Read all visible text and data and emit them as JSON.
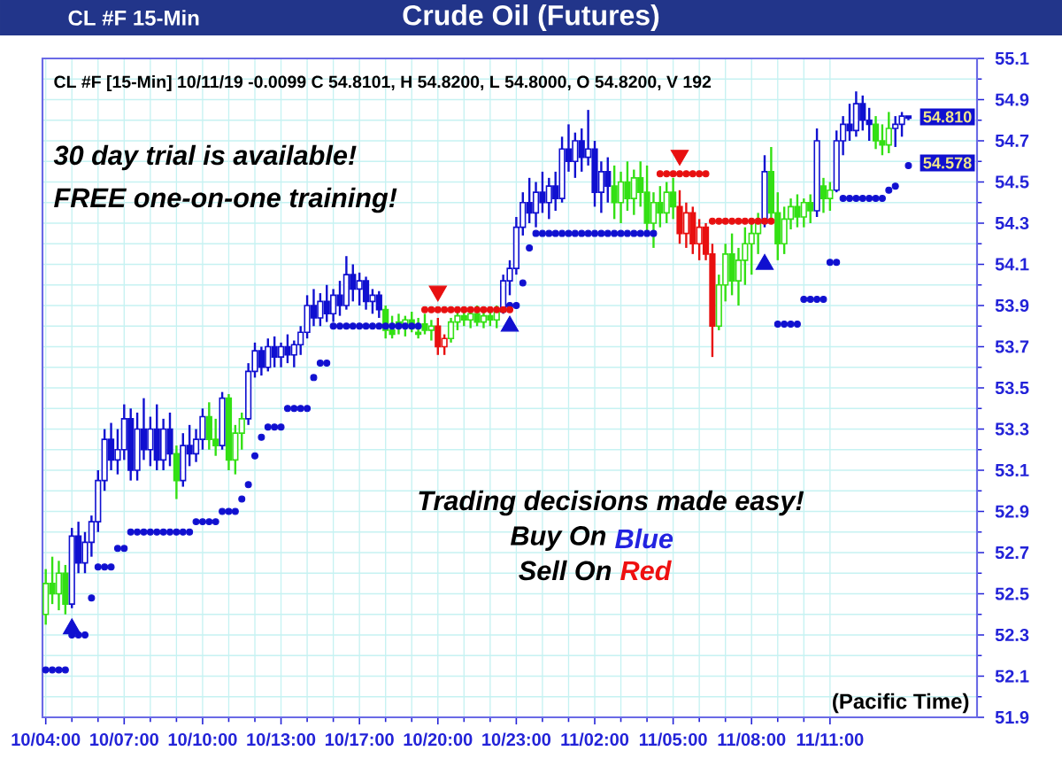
{
  "chart_data": {
    "type": "candlestick",
    "title": "Crude Oil (Futures)",
    "subtitle": "CL #F [15-Min] 10/11/19  -0.0099 C 54.8101, H 54.8200, L 54.8000, O 54.8200, V 192",
    "categories": [
      "10/04:00",
      null,
      null,
      null,
      null,
      null,
      null,
      null,
      null,
      null,
      null,
      null,
      "10/07:00",
      null,
      null,
      null,
      null,
      null,
      null,
      null,
      null,
      null,
      null,
      null,
      "10/10:00",
      null,
      null,
      null,
      null,
      null,
      null,
      null,
      null,
      null,
      null,
      null,
      "10/13:00",
      null,
      null,
      null,
      null,
      null,
      null,
      null,
      null,
      null,
      null,
      null,
      "10/17:00",
      null,
      null,
      null,
      null,
      null,
      null,
      null,
      null,
      null,
      null,
      null,
      "10/20:00",
      null,
      null,
      null,
      null,
      null,
      null,
      null,
      null,
      null,
      null,
      null,
      "10/23:00",
      null,
      null,
      null,
      null,
      null,
      null,
      null,
      null,
      null,
      null,
      null,
      "11/02:00",
      null,
      null,
      null,
      null,
      null,
      null,
      null,
      null,
      null,
      null,
      null,
      "11/05:00",
      null,
      null,
      null,
      null,
      null,
      null,
      null,
      null,
      null,
      null,
      null,
      "11/08:00",
      null,
      null,
      null,
      null,
      null,
      null,
      null,
      null,
      null,
      null,
      null,
      "11/11:00",
      null,
      null,
      null,
      null,
      null,
      null,
      null,
      null,
      null,
      null,
      null,
      null
    ],
    "ohlc": [
      [
        52.4,
        52.62,
        52.35,
        52.55
      ],
      [
        52.55,
        52.68,
        52.45,
        52.5
      ],
      [
        52.5,
        52.66,
        52.42,
        52.6
      ],
      [
        52.6,
        52.64,
        52.4,
        52.45
      ],
      [
        52.45,
        52.82,
        52.43,
        52.78
      ],
      [
        52.78,
        52.85,
        52.6,
        52.65
      ],
      [
        52.65,
        52.8,
        52.6,
        52.75
      ],
      [
        52.75,
        52.88,
        52.68,
        52.85
      ],
      [
        52.85,
        53.1,
        52.8,
        53.05
      ],
      [
        53.05,
        53.3,
        53.0,
        53.25
      ],
      [
        53.25,
        53.33,
        53.1,
        53.15
      ],
      [
        53.15,
        53.3,
        53.08,
        53.2
      ],
      [
        53.2,
        53.42,
        53.15,
        53.35
      ],
      [
        53.35,
        53.4,
        53.05,
        53.1
      ],
      [
        53.1,
        53.38,
        53.05,
        53.3
      ],
      [
        53.3,
        53.45,
        53.15,
        53.2
      ],
      [
        53.2,
        53.36,
        53.12,
        53.3
      ],
      [
        53.3,
        53.42,
        53.1,
        53.15
      ],
      [
        53.15,
        53.35,
        53.1,
        53.3
      ],
      [
        53.3,
        53.38,
        53.12,
        53.18
      ],
      [
        53.18,
        53.22,
        52.96,
        53.05
      ],
      [
        53.05,
        53.28,
        53.02,
        53.22
      ],
      [
        53.22,
        53.32,
        53.12,
        53.18
      ],
      [
        53.18,
        53.3,
        53.14,
        53.25
      ],
      [
        53.25,
        53.4,
        53.2,
        53.36
      ],
      [
        53.36,
        53.43,
        53.2,
        53.25
      ],
      [
        53.25,
        53.35,
        53.17,
        53.22
      ],
      [
        53.22,
        53.48,
        53.2,
        53.45
      ],
      [
        53.45,
        53.47,
        53.1,
        53.15
      ],
      [
        53.15,
        53.32,
        53.08,
        53.28
      ],
      [
        53.28,
        53.38,
        53.2,
        53.35
      ],
      [
        53.35,
        53.62,
        53.32,
        53.58
      ],
      [
        53.58,
        53.72,
        53.55,
        53.68
      ],
      [
        53.68,
        53.7,
        53.56,
        53.6
      ],
      [
        53.6,
        53.74,
        53.58,
        53.7
      ],
      [
        53.7,
        53.75,
        53.6,
        53.65
      ],
      [
        53.65,
        53.72,
        53.6,
        53.7
      ],
      [
        53.7,
        53.76,
        53.62,
        53.66
      ],
      [
        53.66,
        53.73,
        53.6,
        53.71
      ],
      [
        53.71,
        53.8,
        53.66,
        53.77
      ],
      [
        53.77,
        53.95,
        53.74,
        53.9
      ],
      [
        53.9,
        53.98,
        53.8,
        53.84
      ],
      [
        53.84,
        53.96,
        53.8,
        53.92
      ],
      [
        53.92,
        54.0,
        53.82,
        53.86
      ],
      [
        53.86,
        53.98,
        53.82,
        53.95
      ],
      [
        53.95,
        54.02,
        53.85,
        53.9
      ],
      [
        53.9,
        54.14,
        53.88,
        54.05
      ],
      [
        54.05,
        54.1,
        53.92,
        53.98
      ],
      [
        53.98,
        54.06,
        53.9,
        54.02
      ],
      [
        54.02,
        54.04,
        53.88,
        53.92
      ],
      [
        53.92,
        53.98,
        53.86,
        53.95
      ],
      [
        53.95,
        53.97,
        53.84,
        53.88
      ],
      [
        53.88,
        53.9,
        53.74,
        53.78
      ],
      [
        53.78,
        53.85,
        53.74,
        53.76
      ],
      [
        53.82,
        53.86,
        53.76,
        53.8
      ],
      [
        53.8,
        53.85,
        53.75,
        53.83
      ],
      [
        53.83,
        53.87,
        53.77,
        53.79
      ],
      [
        53.77,
        53.84,
        53.74,
        53.76
      ],
      [
        53.81,
        53.86,
        53.76,
        53.78
      ],
      [
        53.78,
        53.83,
        53.73,
        53.8
      ],
      [
        53.8,
        53.84,
        53.66,
        53.7
      ],
      [
        53.7,
        53.76,
        53.66,
        53.74
      ],
      [
        53.74,
        53.84,
        53.72,
        53.82
      ],
      [
        53.82,
        53.88,
        53.78,
        53.85
      ],
      [
        53.85,
        53.89,
        53.8,
        53.83
      ],
      [
        53.83,
        53.88,
        53.79,
        53.86
      ],
      [
        53.86,
        53.9,
        53.8,
        53.82
      ],
      [
        53.82,
        53.87,
        53.79,
        53.85
      ],
      [
        53.85,
        53.89,
        53.8,
        53.83
      ],
      [
        53.83,
        53.9,
        53.79,
        53.87
      ],
      [
        53.87,
        54.05,
        53.86,
        54.02
      ],
      [
        54.02,
        54.12,
        53.95,
        54.08
      ],
      [
        54.08,
        54.33,
        54.05,
        54.28
      ],
      [
        54.28,
        54.45,
        54.24,
        54.4
      ],
      [
        54.4,
        54.52,
        54.3,
        54.35
      ],
      [
        54.35,
        54.5,
        54.28,
        54.45
      ],
      [
        54.45,
        54.55,
        54.35,
        54.4
      ],
      [
        54.4,
        54.52,
        54.32,
        54.48
      ],
      [
        54.48,
        54.55,
        54.36,
        54.42
      ],
      [
        54.42,
        54.72,
        54.4,
        54.66
      ],
      [
        54.66,
        54.78,
        54.55,
        54.6
      ],
      [
        54.6,
        54.74,
        54.52,
        54.7
      ],
      [
        54.7,
        54.76,
        54.55,
        54.62
      ],
      [
        54.62,
        54.85,
        54.58,
        54.66
      ],
      [
        54.66,
        54.7,
        54.38,
        54.45
      ],
      [
        54.45,
        54.6,
        54.35,
        54.55
      ],
      [
        54.55,
        54.62,
        54.4,
        54.48
      ],
      [
        54.48,
        54.58,
        54.32,
        54.4
      ],
      [
        54.4,
        54.55,
        54.3,
        54.5
      ],
      [
        54.5,
        54.6,
        54.36,
        54.42
      ],
      [
        54.42,
        54.56,
        54.34,
        54.52
      ],
      [
        54.52,
        54.6,
        54.38,
        54.45
      ],
      [
        54.45,
        54.58,
        54.25,
        54.3
      ],
      [
        54.3,
        54.45,
        54.18,
        54.4
      ],
      [
        54.4,
        54.48,
        54.28,
        54.35
      ],
      [
        54.35,
        54.5,
        54.3,
        54.45
      ],
      [
        54.45,
        54.52,
        54.32,
        54.38
      ],
      [
        54.38,
        54.46,
        54.2,
        54.25
      ],
      [
        54.25,
        54.4,
        54.18,
        54.35
      ],
      [
        54.35,
        54.38,
        54.15,
        54.2
      ],
      [
        54.2,
        54.32,
        54.12,
        54.28
      ],
      [
        54.28,
        54.3,
        54.12,
        54.15
      ],
      [
        54.15,
        54.2,
        53.65,
        53.8
      ],
      [
        53.8,
        54.05,
        53.78,
        54.0
      ],
      [
        54.0,
        54.2,
        53.92,
        54.15
      ],
      [
        54.15,
        54.25,
        53.95,
        54.02
      ],
      [
        54.02,
        54.18,
        53.9,
        54.12
      ],
      [
        54.12,
        54.28,
        54.0,
        54.2
      ],
      [
        54.2,
        54.3,
        54.05,
        54.25
      ],
      [
        54.25,
        54.35,
        54.15,
        54.3
      ],
      [
        54.3,
        54.63,
        54.28,
        54.55
      ],
      [
        54.55,
        54.67,
        54.3,
        54.35
      ],
      [
        54.35,
        54.45,
        54.12,
        54.2
      ],
      [
        54.2,
        54.38,
        54.15,
        54.32
      ],
      [
        54.32,
        54.42,
        54.27,
        54.38
      ],
      [
        54.38,
        54.44,
        54.28,
        54.33
      ],
      [
        54.33,
        54.42,
        54.28,
        54.4
      ],
      [
        54.4,
        54.44,
        54.3,
        54.36
      ],
      [
        54.36,
        54.76,
        54.33,
        54.7
      ],
      [
        54.48,
        54.52,
        54.35,
        54.42
      ],
      [
        54.42,
        54.5,
        54.36,
        54.46
      ],
      [
        54.46,
        54.75,
        54.45,
        54.7
      ],
      [
        54.7,
        54.82,
        54.63,
        54.78
      ],
      [
        54.78,
        54.88,
        54.7,
        54.75
      ],
      [
        54.75,
        54.94,
        54.72,
        54.88
      ],
      [
        54.88,
        54.92,
        54.75,
        54.8
      ],
      [
        54.8,
        54.86,
        54.7,
        54.78
      ],
      [
        54.78,
        54.82,
        54.66,
        54.7
      ],
      [
        54.7,
        54.78,
        54.63,
        54.68
      ],
      [
        54.68,
        54.84,
        54.64,
        54.76
      ],
      [
        54.76,
        54.82,
        54.67,
        54.78
      ],
      [
        54.78,
        54.84,
        54.72,
        54.82
      ],
      [
        54.82,
        54.82,
        54.8,
        54.81
      ]
    ],
    "colors": [
      "#33e014",
      "#33e014",
      "#33e014",
      "#33e014",
      "#1010d0",
      "#1010d0",
      "#1010d0",
      "#1010d0",
      "#1010d0",
      "#1010d0",
      "#1010d0",
      "#1010d0",
      "#1010d0",
      "#1010d0",
      "#1010d0",
      "#1010d0",
      "#1010d0",
      "#1010d0",
      "#1010d0",
      "#1010d0",
      "#33e014",
      "#1010d0",
      "#1010d0",
      "#1010d0",
      "#1010d0",
      "#33e014",
      "#33e014",
      "#1010d0",
      "#33e014",
      "#33e014",
      "#33e014",
      "#1010d0",
      "#1010d0",
      "#1010d0",
      "#1010d0",
      "#1010d0",
      "#1010d0",
      "#1010d0",
      "#1010d0",
      "#1010d0",
      "#1010d0",
      "#1010d0",
      "#1010d0",
      "#1010d0",
      "#1010d0",
      "#1010d0",
      "#1010d0",
      "#1010d0",
      "#1010d0",
      "#1010d0",
      "#1010d0",
      "#1010d0",
      "#33e014",
      "#33e014",
      "#33e014",
      "#33e014",
      "#33e014",
      "#33e014",
      "#33e014",
      "#33e014",
      "#e81010",
      "#e81010",
      "#33e014",
      "#33e014",
      "#33e014",
      "#33e014",
      "#33e014",
      "#33e014",
      "#33e014",
      "#33e014",
      "#1010d0",
      "#1010d0",
      "#1010d0",
      "#1010d0",
      "#1010d0",
      "#1010d0",
      "#1010d0",
      "#1010d0",
      "#1010d0",
      "#1010d0",
      "#1010d0",
      "#1010d0",
      "#1010d0",
      "#1010d0",
      "#1010d0",
      "#1010d0",
      "#1010d0",
      "#33e014",
      "#33e014",
      "#33e014",
      "#33e014",
      "#33e014",
      "#33e014",
      "#33e014",
      "#33e014",
      "#33e014",
      "#33e014",
      "#e81010",
      "#e81010",
      "#e81010",
      "#e81010",
      "#e81010",
      "#e81010",
      "#33e014",
      "#33e014",
      "#33e014",
      "#33e014",
      "#33e014",
      "#33e014",
      "#33e014",
      "#1010d0",
      "#33e014",
      "#33e014",
      "#33e014",
      "#33e014",
      "#33e014",
      "#33e014",
      "#33e014",
      "#1010d0",
      "#33e014",
      "#33e014",
      "#1010d0",
      "#1010d0",
      "#1010d0",
      "#1010d0",
      "#1010d0",
      "#1010d0",
      "#33e014",
      "#33e014",
      "#33e014",
      "#1010d0",
      "#1010d0",
      "#1010d0"
    ],
    "series": [
      {
        "type": "scatter",
        "marker": "circle",
        "color": "#1010d0",
        "values": [
          52.13,
          52.13,
          52.13,
          52.13,
          52.3,
          52.3,
          52.3,
          52.48,
          52.63,
          52.63,
          52.63,
          52.72,
          52.72,
          52.8,
          52.8,
          52.8,
          52.8,
          52.8,
          52.8,
          52.8,
          52.8,
          52.8,
          52.8,
          52.85,
          52.85,
          52.85,
          52.85,
          52.9,
          52.9,
          52.9,
          52.96,
          53.03,
          53.17,
          53.26,
          53.31,
          53.31,
          53.31,
          53.4,
          53.4,
          53.4,
          53.4,
          53.55,
          53.62,
          53.62,
          53.8,
          53.8,
          53.8,
          53.8,
          53.8,
          53.8,
          53.8,
          53.8,
          53.8,
          53.8,
          53.8,
          53.8,
          53.8,
          53.8,
          null,
          null,
          null,
          null,
          null,
          null,
          null,
          null,
          null,
          null,
          null,
          null,
          null,
          53.9,
          53.9,
          54.01,
          54.18,
          54.25,
          54.25,
          54.25,
          54.25,
          54.25,
          54.25,
          54.25,
          54.25,
          54.25,
          54.25,
          54.25,
          54.25,
          54.25,
          54.25,
          54.25,
          54.25,
          54.25,
          54.25,
          54.25,
          null,
          null,
          null,
          null,
          null,
          null,
          null,
          null,
          null,
          null,
          null,
          null,
          null,
          null,
          null,
          null,
          null,
          null,
          53.81,
          53.81,
          53.81,
          53.81,
          53.93,
          53.93,
          53.93,
          53.93,
          54.11,
          54.11,
          54.42,
          54.42,
          54.42,
          54.42,
          54.42,
          54.42,
          54.42,
          54.46,
          54.48,
          null,
          54.58
        ]
      },
      {
        "type": "scatter",
        "marker": "circle",
        "color": "#e81010",
        "values": [
          null,
          null,
          null,
          null,
          null,
          null,
          null,
          null,
          null,
          null,
          null,
          null,
          null,
          null,
          null,
          null,
          null,
          null,
          null,
          null,
          null,
          null,
          null,
          null,
          null,
          null,
          null,
          null,
          null,
          null,
          null,
          null,
          null,
          null,
          null,
          null,
          null,
          null,
          null,
          null,
          null,
          null,
          null,
          null,
          null,
          null,
          null,
          null,
          null,
          null,
          null,
          null,
          null,
          null,
          null,
          null,
          null,
          null,
          53.88,
          53.88,
          53.88,
          53.88,
          53.88,
          53.88,
          53.88,
          53.88,
          53.88,
          53.88,
          53.88,
          53.88,
          53.88,
          53.88,
          null,
          null,
          null,
          null,
          null,
          null,
          null,
          null,
          null,
          null,
          null,
          null,
          null,
          null,
          null,
          null,
          null,
          null,
          null,
          null,
          null,
          null,
          54.54,
          54.54,
          54.54,
          54.54,
          54.54,
          54.54,
          54.54,
          54.54,
          54.31,
          54.31,
          54.31,
          54.31,
          54.31,
          54.31,
          54.31,
          54.31,
          54.31,
          54.31,
          null,
          null,
          null,
          null,
          null,
          null,
          null,
          null,
          null,
          null,
          null,
          null,
          null,
          null,
          null,
          null,
          null,
          null,
          null,
          null,
          null
        ]
      },
      {
        "type": "scatter",
        "marker": "triangle",
        "color": "#1010d0",
        "values": [
          null,
          null,
          null,
          null,
          52.33,
          null,
          null,
          null,
          null,
          null,
          null,
          null,
          null,
          null,
          null,
          null,
          null,
          null,
          null,
          null,
          null,
          null,
          null,
          null,
          null,
          null,
          null,
          null,
          null,
          null,
          null,
          null,
          null,
          null,
          null,
          null,
          null,
          null,
          null,
          null,
          null,
          null,
          null,
          null,
          null,
          null,
          null,
          null,
          null,
          null,
          null,
          null,
          null,
          null,
          null,
          null,
          null,
          null,
          null,
          null,
          null,
          null,
          null,
          null,
          null,
          null,
          null,
          null,
          null,
          null,
          null,
          53.8,
          null,
          null,
          null,
          null,
          null,
          null,
          null,
          null,
          null,
          null,
          null,
          null,
          null,
          null,
          null,
          null,
          null,
          null,
          null,
          null,
          null,
          null,
          null,
          null,
          null,
          null,
          null,
          null,
          null,
          null,
          null,
          null,
          null,
          null,
          null,
          null,
          null,
          null,
          54.1,
          null,
          null,
          null,
          null,
          null,
          null,
          null,
          null,
          null,
          null,
          null,
          null,
          null,
          null,
          null,
          null,
          null,
          null,
          null,
          null,
          null,
          null
        ]
      },
      {
        "type": "scatter",
        "marker": "triangle",
        "color": "#e81010",
        "values": [
          null,
          null,
          null,
          null,
          null,
          null,
          null,
          null,
          null,
          null,
          null,
          null,
          null,
          null,
          null,
          null,
          null,
          null,
          null,
          null,
          null,
          null,
          null,
          null,
          null,
          null,
          null,
          null,
          null,
          null,
          null,
          null,
          null,
          null,
          null,
          null,
          null,
          null,
          null,
          null,
          null,
          null,
          null,
          null,
          null,
          null,
          null,
          null,
          null,
          null,
          null,
          null,
          null,
          null,
          null,
          null,
          null,
          null,
          null,
          null,
          53.97,
          null,
          null,
          null,
          null,
          null,
          null,
          null,
          null,
          null,
          null,
          null,
          null,
          null,
          null,
          null,
          null,
          null,
          null,
          null,
          null,
          null,
          null,
          null,
          null,
          null,
          null,
          null,
          null,
          null,
          null,
          null,
          null,
          null,
          null,
          null,
          null,
          54.63,
          null,
          null,
          null,
          null,
          null,
          null,
          null,
          null,
          null,
          null,
          null,
          null,
          null,
          null,
          null,
          null,
          null,
          null,
          null,
          null,
          null,
          null,
          null,
          null,
          null,
          null,
          null,
          null,
          null,
          null,
          null,
          null,
          null,
          null,
          null
        ]
      }
    ],
    "ylim": [
      51.9,
      55.1
    ],
    "yticks": [
      51.9,
      52.1,
      52.3,
      52.5,
      52.7,
      52.9,
      53.1,
      53.3,
      53.5,
      53.7,
      53.9,
      54.1,
      54.3,
      54.5,
      54.7,
      54.9,
      55.1
    ],
    "grid": true,
    "annotations": [
      "CL #F 15-Min",
      "30 day trial is available!",
      "FREE one-on-one training!",
      "Trading decisions made easy!",
      "Buy On",
      "Blue",
      "Sell On",
      "Red",
      "(Pacific Time)",
      "54.810",
      "54.578"
    ]
  }
}
